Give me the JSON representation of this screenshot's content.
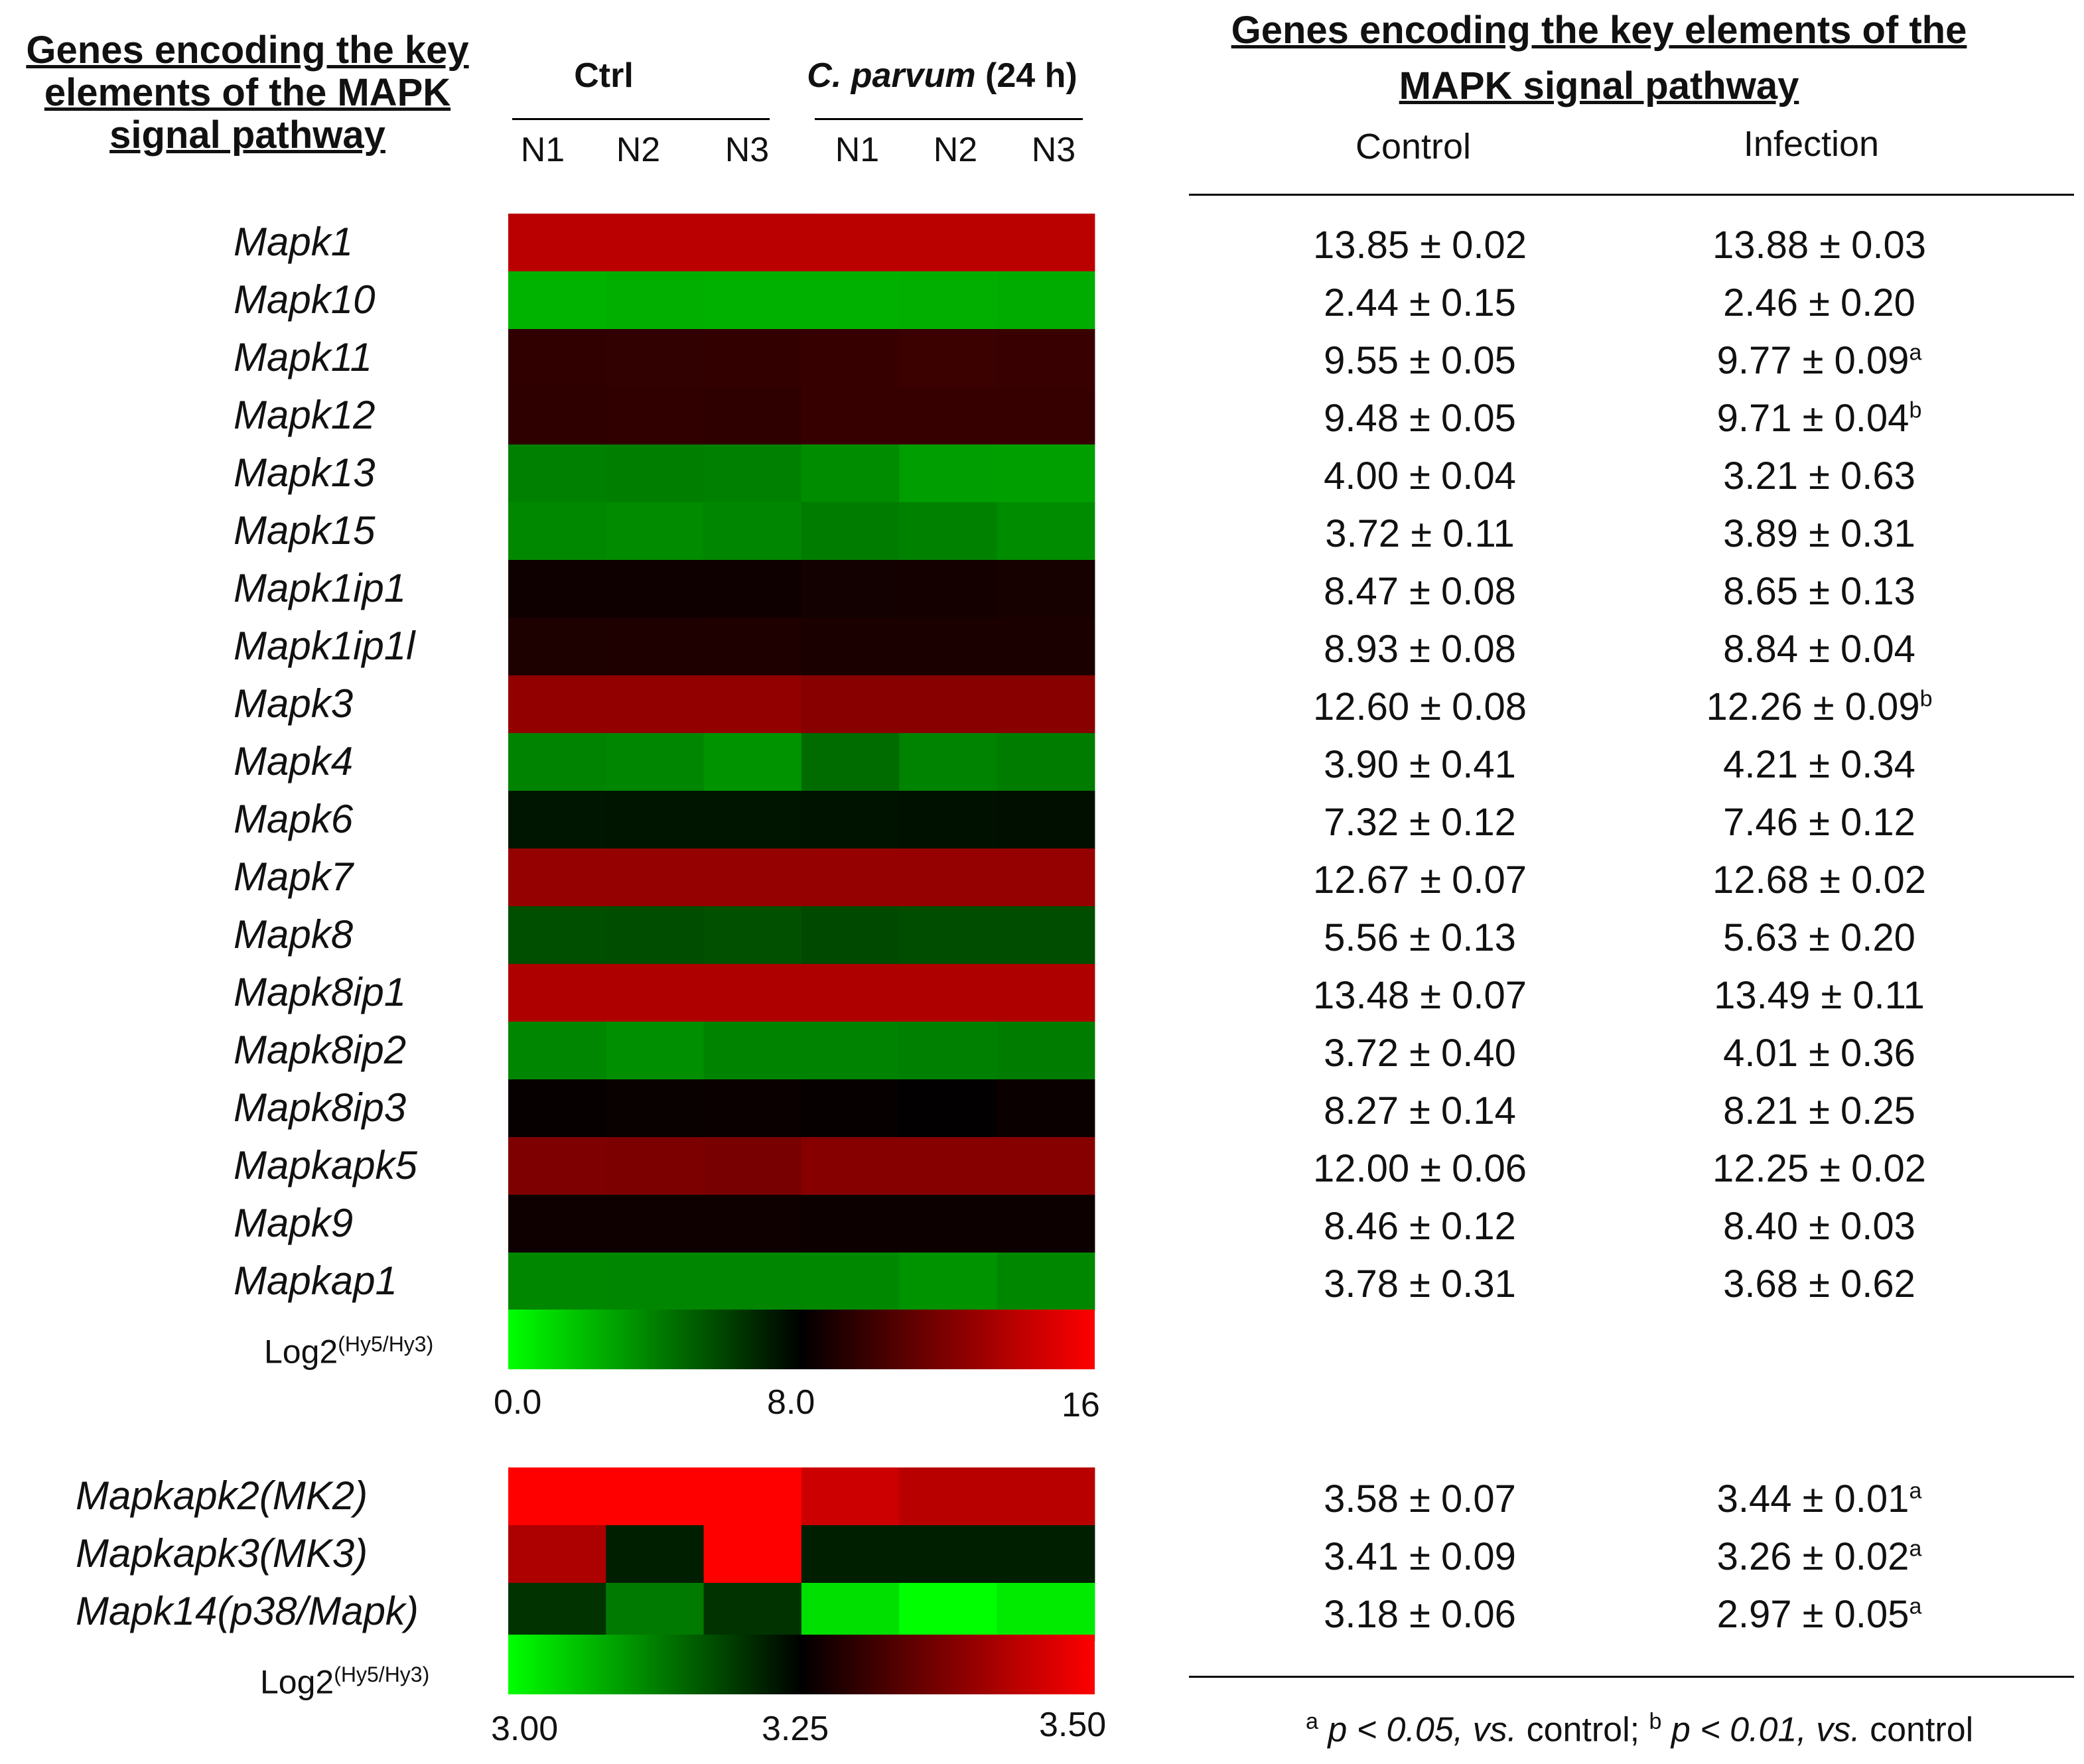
{
  "left_title": "Genes encoding the key elements of the MAPK signal pathway",
  "left_title_lines": [
    "Genes encoding the key",
    "elements of the MAPK",
    "signal pathway"
  ],
  "right_title_lines": [
    "Genes encoding the key elements of the",
    "MAPK signal pathway"
  ],
  "groups": {
    "ctrl": "Ctrl",
    "infected_species": "C. parvum",
    "infected_time": " (24 h)"
  },
  "columns": [
    "N1",
    "N2",
    "N3",
    "N1",
    "N2",
    "N3"
  ],
  "table_headers": {
    "control": "Control",
    "infection": "Infection"
  },
  "footnote": "a p < 0.05, vs. control; b p < 0.01, vs. control",
  "footnote_parts": {
    "a": "a",
    "a_text": "p < 0.05, ",
    "vs1": "vs.",
    "mid": " control; ",
    "b": "b",
    "b_text": "p < 0.01, ",
    "vs2": "vs.",
    "end": " control"
  },
  "colors": {
    "low": "#00ff00",
    "mid": "#000000",
    "high": "#ff0000"
  },
  "chart_data": [
    {
      "type": "heatmap",
      "title": "Genes encoding the key elements of the MAPK signal pathway",
      "legend_label": "Log2",
      "legend_superscript": "(Hy5/Hy3)",
      "scale": {
        "min": 0.0,
        "mid": 8.0,
        "max": 16
      },
      "scale_labels": [
        "0.0",
        "8.0",
        "16"
      ],
      "columns": [
        "Ctrl N1",
        "Ctrl N2",
        "Ctrl N3",
        "C. parvum N1",
        "C. parvum N2",
        "C. parvum N3"
      ],
      "rows": [
        "Mapk1",
        "Mapk10",
        "Mapk11",
        "Mapk12",
        "Mapk13",
        "Mapk15",
        "Mapk1ip1",
        "Mapk1ip1l",
        "Mapk3",
        "Mapk4",
        "Mapk6",
        "Mapk7",
        "Mapk8",
        "Mapk8ip1",
        "Mapk8ip2",
        "Mapk8ip3",
        "Mapkapk5",
        "Mapk9",
        "Mapkap1"
      ],
      "values": [
        [
          13.85,
          13.85,
          13.85,
          13.88,
          13.88,
          13.88
        ],
        [
          2.4,
          2.5,
          2.45,
          2.45,
          2.5,
          2.6
        ],
        [
          9.5,
          9.55,
          9.6,
          9.7,
          9.85,
          9.75
        ],
        [
          9.45,
          9.5,
          9.45,
          9.7,
          9.72,
          9.7
        ],
        [
          4.0,
          4.05,
          4.0,
          3.6,
          3.05,
          3.0
        ],
        [
          3.7,
          3.65,
          3.8,
          4.1,
          3.95,
          3.6
        ],
        [
          8.45,
          8.48,
          8.47,
          8.6,
          8.65,
          8.7
        ],
        [
          8.9,
          8.93,
          8.97,
          8.84,
          8.84,
          8.84
        ],
        [
          12.6,
          12.6,
          12.6,
          12.26,
          12.26,
          12.26
        ],
        [
          3.9,
          3.8,
          3.4,
          4.6,
          3.9,
          4.1
        ],
        [
          7.3,
          7.33,
          7.33,
          7.4,
          7.46,
          7.52
        ],
        [
          12.67,
          12.67,
          12.67,
          12.68,
          12.68,
          12.68
        ],
        [
          5.55,
          5.6,
          5.5,
          5.7,
          5.6,
          5.6
        ],
        [
          13.48,
          13.48,
          13.48,
          13.49,
          13.49,
          13.49
        ],
        [
          3.8,
          3.5,
          3.85,
          3.9,
          4.0,
          4.1
        ],
        [
          8.2,
          8.27,
          8.3,
          8.2,
          8.05,
          8.35
        ],
        [
          11.95,
          11.9,
          11.8,
          12.25,
          12.25,
          12.25
        ],
        [
          8.45,
          8.46,
          8.47,
          8.4,
          8.4,
          8.4
        ],
        [
          3.75,
          3.8,
          3.8,
          3.7,
          3.4,
          3.75
        ]
      ]
    },
    {
      "type": "heatmap",
      "legend_label": "Log2",
      "legend_superscript": "(Hy5/Hy3)",
      "scale": {
        "min": 3.0,
        "mid": 3.25,
        "max": 3.5
      },
      "scale_labels": [
        "3.00",
        "3.25",
        "3.50"
      ],
      "columns": [
        "Ctrl N1",
        "Ctrl N2",
        "Ctrl N3",
        "C. parvum N1",
        "C. parvum N2",
        "C. parvum N3"
      ],
      "rows": [
        "Mapkapk2(MK2)",
        "Mapkapk3(MK3)",
        "Mapk14(p38/Mapk)"
      ],
      "values": [
        [
          3.55,
          3.55,
          3.55,
          3.45,
          3.43,
          3.43
        ],
        [
          3.42,
          3.22,
          3.55,
          3.22,
          3.22,
          3.22
        ],
        [
          3.2,
          3.13,
          3.2,
          3.03,
          2.98,
          3.02
        ]
      ]
    },
    {
      "type": "table",
      "columns": [
        "Control",
        "Infection"
      ],
      "rows": [
        {
          "gene": "Mapk1",
          "control": "13.85 ± 0.02",
          "infection": "13.88 ± 0.03",
          "sig": ""
        },
        {
          "gene": "Mapk10",
          "control": "2.44 ± 0.15",
          "infection": "2.46 ± 0.20",
          "sig": ""
        },
        {
          "gene": "Mapk11",
          "control": "9.55 ± 0.05",
          "infection": "9.77 ± 0.09",
          "sig": "a"
        },
        {
          "gene": "Mapk12",
          "control": "9.48 ± 0.05",
          "infection": "9.71 ± 0.04",
          "sig": "b"
        },
        {
          "gene": "Mapk13",
          "control": "4.00 ± 0.04",
          "infection": "3.21 ± 0.63",
          "sig": ""
        },
        {
          "gene": "Mapk15",
          "control": "3.72 ± 0.11",
          "infection": "3.89 ± 0.31",
          "sig": ""
        },
        {
          "gene": "Mapk1ip1",
          "control": "8.47 ± 0.08",
          "infection": "8.65 ± 0.13",
          "sig": ""
        },
        {
          "gene": "Mapk1ip1l",
          "control": "8.93 ± 0.08",
          "infection": "8.84 ± 0.04",
          "sig": ""
        },
        {
          "gene": "Mapk3",
          "control": "12.60 ± 0.08",
          "infection": "12.26 ± 0.09",
          "sig": "b"
        },
        {
          "gene": "Mapk4",
          "control": "3.90 ± 0.41",
          "infection": "4.21 ± 0.34",
          "sig": ""
        },
        {
          "gene": "Mapk6",
          "control": "7.32 ± 0.12",
          "infection": "7.46 ± 0.12",
          "sig": ""
        },
        {
          "gene": "Mapk7",
          "control": "12.67 ± 0.07",
          "infection": "12.68 ± 0.02",
          "sig": ""
        },
        {
          "gene": "Mapk8",
          "control": "5.56 ± 0.13",
          "infection": "5.63 ± 0.20",
          "sig": ""
        },
        {
          "gene": "Mapk8ip1",
          "control": "13.48 ± 0.07",
          "infection": "13.49 ± 0.11",
          "sig": ""
        },
        {
          "gene": "Mapk8ip2",
          "control": "3.72 ± 0.40",
          "infection": "4.01 ± 0.36",
          "sig": ""
        },
        {
          "gene": "Mapk8ip3",
          "control": "8.27 ± 0.14",
          "infection": "8.21 ± 0.25",
          "sig": ""
        },
        {
          "gene": "Mapkapk5",
          "control": "12.00 ± 0.06",
          "infection": "12.25 ± 0.02",
          "sig": ""
        },
        {
          "gene": "Mapk9",
          "control": "8.46 ± 0.12",
          "infection": "8.40 ± 0.03",
          "sig": ""
        },
        {
          "gene": "Mapkap1",
          "control": "3.78 ± 0.31",
          "infection": "3.68 ± 0.62",
          "sig": ""
        },
        {
          "gene": "Mapkapk2(MK2)",
          "control": "3.58 ± 0.07",
          "infection": "3.44 ± 0.01",
          "sig": "a"
        },
        {
          "gene": "Mapkapk3(MK3)",
          "control": "3.41 ± 0.09",
          "infection": "3.26 ± 0.02",
          "sig": "a"
        },
        {
          "gene": "Mapk14(p38/Mapk)",
          "control": "3.18 ± 0.06",
          "infection": "2.97 ± 0.05",
          "sig": "a"
        }
      ]
    }
  ]
}
